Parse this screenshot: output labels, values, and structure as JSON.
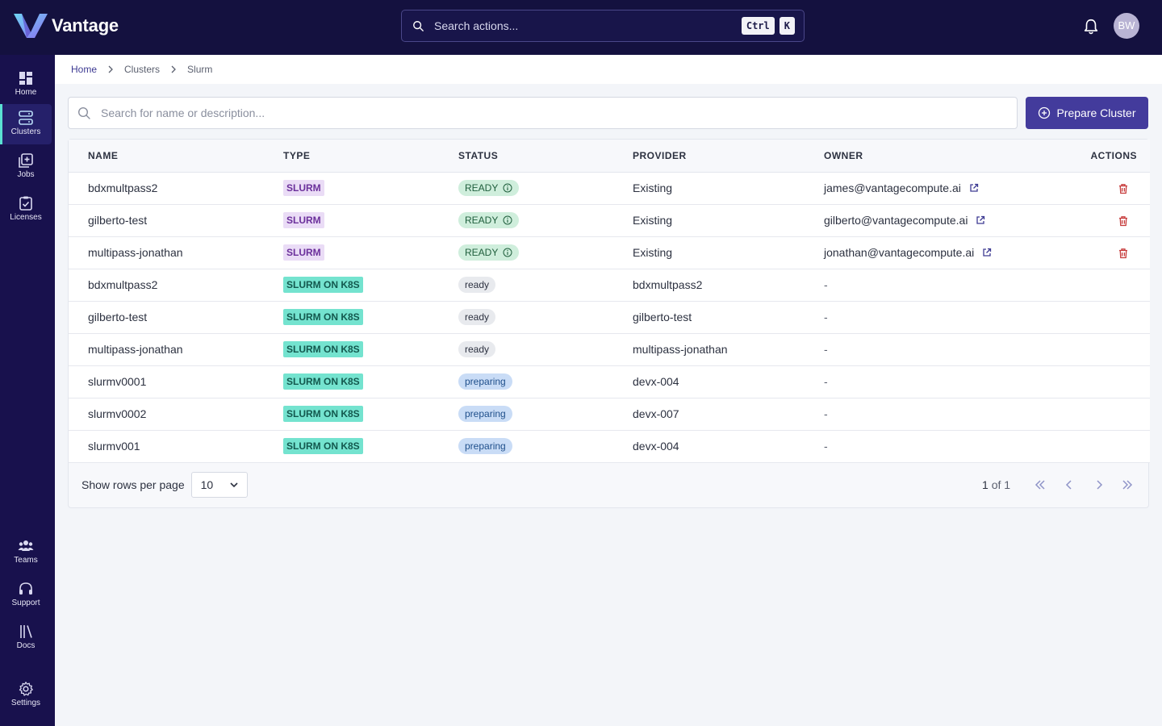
{
  "app": {
    "name": "Vantage",
    "search_placeholder": "Search actions...",
    "shortcut_keys": [
      "Ctrl",
      "K"
    ],
    "user_initials": "BW",
    "colors": {
      "topbar": "#14113f",
      "sidebar": "#18114d",
      "accent": "#433b9c",
      "active_indicator": "#5ae0d2"
    }
  },
  "sidebar": {
    "top_items": [
      {
        "label": "Home",
        "icon": "dashboard-icon"
      },
      {
        "label": "Clusters",
        "icon": "server-icon",
        "active": true
      },
      {
        "label": "Jobs",
        "icon": "add-jobs-icon"
      },
      {
        "label": "Licenses",
        "icon": "clipboard-check-icon"
      }
    ],
    "bottom_items": [
      {
        "label": "Teams",
        "icon": "people-icon"
      },
      {
        "label": "Support",
        "icon": "headset-icon"
      },
      {
        "label": "Docs",
        "icon": "library-icon"
      },
      {
        "label": "Settings",
        "icon": "gear-icon"
      }
    ]
  },
  "breadcrumb": [
    "Home",
    "Clusters",
    "Slurm"
  ],
  "toolbar": {
    "search_placeholder": "Search for name or description...",
    "prepare_label": "Prepare Cluster"
  },
  "table": {
    "headers": {
      "name": "NAME",
      "type": "TYPE",
      "status": "STATUS",
      "provider": "PROVIDER",
      "owner": "OWNER",
      "actions": "ACTIONS"
    },
    "rows": [
      {
        "name": "bdxmultpass2",
        "type": "SLURM",
        "status": "READY",
        "provider": "Existing",
        "owner": "james@vantagecompute.ai"
      },
      {
        "name": "gilberto-test",
        "type": "SLURM",
        "status": "READY",
        "provider": "Existing",
        "owner": "gilberto@vantagecompute.ai"
      },
      {
        "name": "multipass-jonathan",
        "type": "SLURM",
        "status": "READY",
        "provider": "Existing",
        "owner": "jonathan@vantagecompute.ai"
      },
      {
        "name": "bdxmultpass2",
        "type": "SLURM ON K8S",
        "status": "ready",
        "provider": "bdxmultpass2",
        "owner": "-"
      },
      {
        "name": "gilberto-test",
        "type": "SLURM ON K8S",
        "status": "ready",
        "provider": "gilberto-test",
        "owner": "-"
      },
      {
        "name": "multipass-jonathan",
        "type": "SLURM ON K8S",
        "status": "ready",
        "provider": "multipass-jonathan",
        "owner": "-"
      },
      {
        "name": "slurmv0001",
        "type": "SLURM ON K8S",
        "status": "preparing",
        "provider": "devx-004",
        "owner": "-"
      },
      {
        "name": "slurmv0002",
        "type": "SLURM ON K8S",
        "status": "preparing",
        "provider": "devx-007",
        "owner": "-"
      },
      {
        "name": "slurmv001",
        "type": "SLURM ON K8S",
        "status": "preparing",
        "provider": "devx-004",
        "owner": "-"
      }
    ]
  },
  "footer": {
    "rows_label": "Show rows per page",
    "rows_value": "10",
    "page_current": "1",
    "page_of": "of",
    "page_total": "1"
  }
}
